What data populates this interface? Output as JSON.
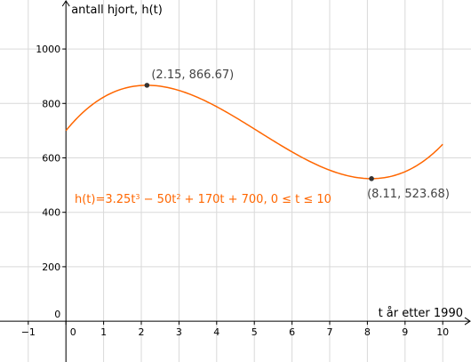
{
  "chart_data": {
    "type": "line",
    "xlabel": "t år etter 1990",
    "ylabel": "antall hjort, h(t)",
    "xlim": [
      -1.75,
      10.75
    ],
    "ylim": [
      -150,
      1180
    ],
    "x_ticks": [
      -1,
      0,
      1,
      2,
      3,
      4,
      5,
      6,
      7,
      8,
      9,
      10
    ],
    "x_tick_labels": [
      "−1",
      "0",
      "1",
      "2",
      "3",
      "4",
      "5",
      "6",
      "7",
      "8",
      "9",
      "10"
    ],
    "y_ticks": [
      0,
      200,
      400,
      600,
      800,
      1000
    ],
    "y_tick_labels": [
      "0",
      "200",
      "400",
      "600",
      "800",
      "1000"
    ],
    "grid": true,
    "series": [
      {
        "color": "#ff6600",
        "domain": [
          0,
          10
        ],
        "coefficients": {
          "a": 3.25,
          "b": -50,
          "c": 170,
          "d": 700
        }
      }
    ],
    "points": [
      {
        "x": 2.15,
        "y": 866.67,
        "label": "(2.15, 866.67)"
      },
      {
        "x": 8.11,
        "y": 523.68,
        "label": "(8.11, 523.68)"
      }
    ],
    "annotation": {
      "parts": [
        "h(t)=3.25t",
        "3",
        " − 50t",
        "2",
        " + 170t + 700, 0 ≤ t ≤ 10"
      ],
      "color": "#ff6600"
    },
    "point_color": "#333333"
  }
}
